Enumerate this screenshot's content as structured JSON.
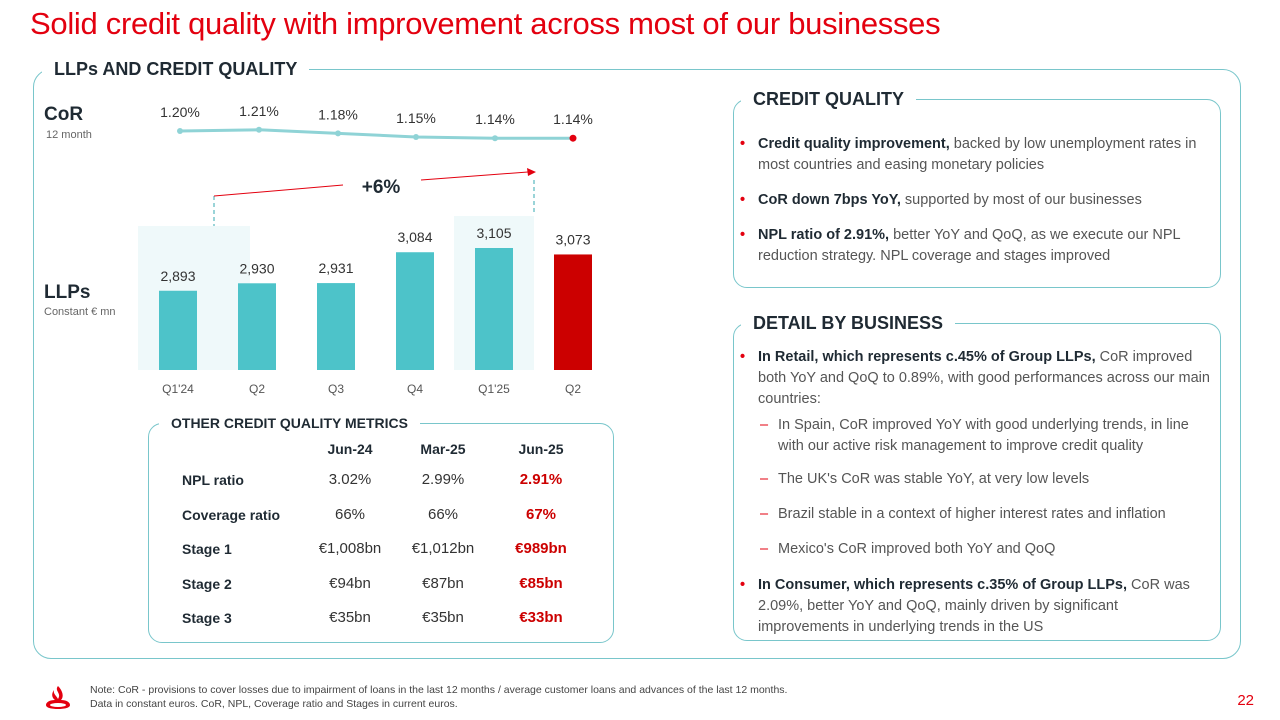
{
  "title": "Solid credit quality with improvement across most of our businesses",
  "section_label": "LLPs AND CREDIT QUALITY",
  "cor_label": "CoR",
  "cor_sublabel": "12 month",
  "llps_label": "LLPs",
  "llps_sublabel": "Constant € mn",
  "growth_label": "+6%",
  "chart_data": [
    {
      "type": "line",
      "x": [
        "Q1'24",
        "Q2",
        "Q3",
        "Q4",
        "Q1'25",
        "Q2"
      ],
      "y": [
        1.2,
        1.21,
        1.18,
        1.15,
        1.14,
        1.14
      ],
      "data_labels": [
        "1.20%",
        "1.21%",
        "1.18%",
        "1.15%",
        "1.14%",
        "1.14%"
      ],
      "colors": {
        "line": "#8fd3d6",
        "highlight": "#e3000f"
      }
    },
    {
      "type": "bar",
      "categories": [
        "Q1'24",
        "Q2",
        "Q3",
        "Q4",
        "Q1'25",
        "Q2"
      ],
      "values": [
        2893,
        2930,
        2931,
        3084,
        3105,
        3073
      ],
      "data_labels": [
        "2,893",
        "2,930",
        "2,931",
        "3,084",
        "3,105",
        "3,073"
      ],
      "colors": {
        "bar": "#4dc3c9",
        "highlight": "#cc0000",
        "highlight_background": "#eff9fa"
      },
      "highlighted_columns": [
        0,
        4
      ]
    }
  ],
  "metrics": {
    "label": "OTHER CREDIT QUALITY METRICS",
    "columns": [
      "Jun-24",
      "Mar-25",
      "Jun-25"
    ],
    "rows": [
      {
        "label": "NPL ratio",
        "values": [
          "3.02%",
          "2.99%",
          "2.91%"
        ]
      },
      {
        "label": "Coverage ratio",
        "values": [
          "66%",
          "66%",
          "67%"
        ]
      },
      {
        "label": "Stage 1",
        "values": [
          "€1,008bn",
          "€1,012bn",
          "€989bn"
        ]
      },
      {
        "label": "Stage 2",
        "values": [
          "€94bn",
          "€87bn",
          "€85bn"
        ]
      },
      {
        "label": "Stage 3",
        "values": [
          "€35bn",
          "€35bn",
          "€33bn"
        ]
      }
    ]
  },
  "credit_quality": {
    "label": "CREDIT QUALITY",
    "bullets": [
      {
        "bold": "Credit quality improvement,",
        "text": " backed by low unemployment rates in most countries and easing monetary policies"
      },
      {
        "bold": "CoR down 7bps YoY,",
        "text": " supported by most of our businesses"
      },
      {
        "bold": "NPL ratio of 2.91%,",
        "text": " better YoY and QoQ, as we execute our NPL reduction strategy. NPL coverage and stages improved"
      }
    ]
  },
  "detail_by_business": {
    "label": "DETAIL BY BUSINESS",
    "retail": {
      "bold": "In Retail, which represents c.45% of Group LLPs,",
      "text": " CoR improved both YoY and QoQ to 0.89%, with good performances across our main countries:"
    },
    "subs": [
      "In Spain, CoR improved YoY with good underlying trends, in line with our active risk management to improve credit quality",
      "The UK's CoR was stable YoY, at very low levels",
      "Brazil stable in a context of higher interest rates and inflation",
      "Mexico's CoR improved both YoY and QoQ"
    ],
    "consumer": {
      "bold": "In Consumer, which represents c.35% of Group LLPs,",
      "text": " CoR was 2.09%, better YoY and QoQ, mainly driven by significant improvements in underlying trends in the US"
    }
  },
  "footer": {
    "note_line1": "Note: CoR - provisions to cover losses due to impairment of loans in the last 12 months / average customer loans and advances of the last 12 months.",
    "note_line2": "Data in constant euros. CoR, NPL, Coverage ratio and Stages in current euros.",
    "page_number": "22"
  }
}
